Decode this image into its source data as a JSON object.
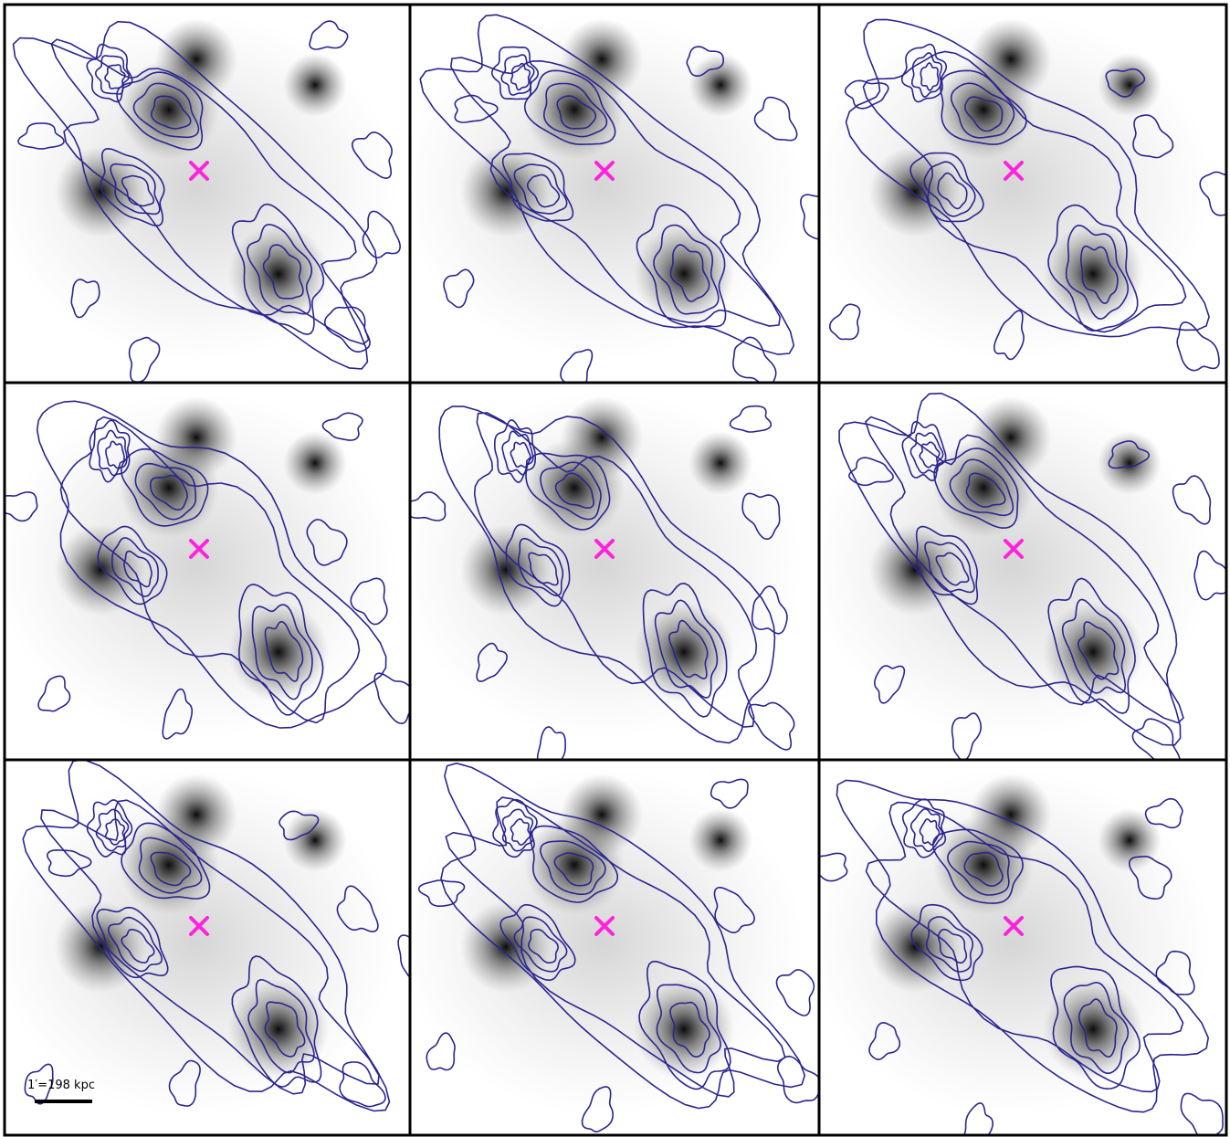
{
  "scale_bar": {
    "label": "1′=198 kpc"
  }
}
